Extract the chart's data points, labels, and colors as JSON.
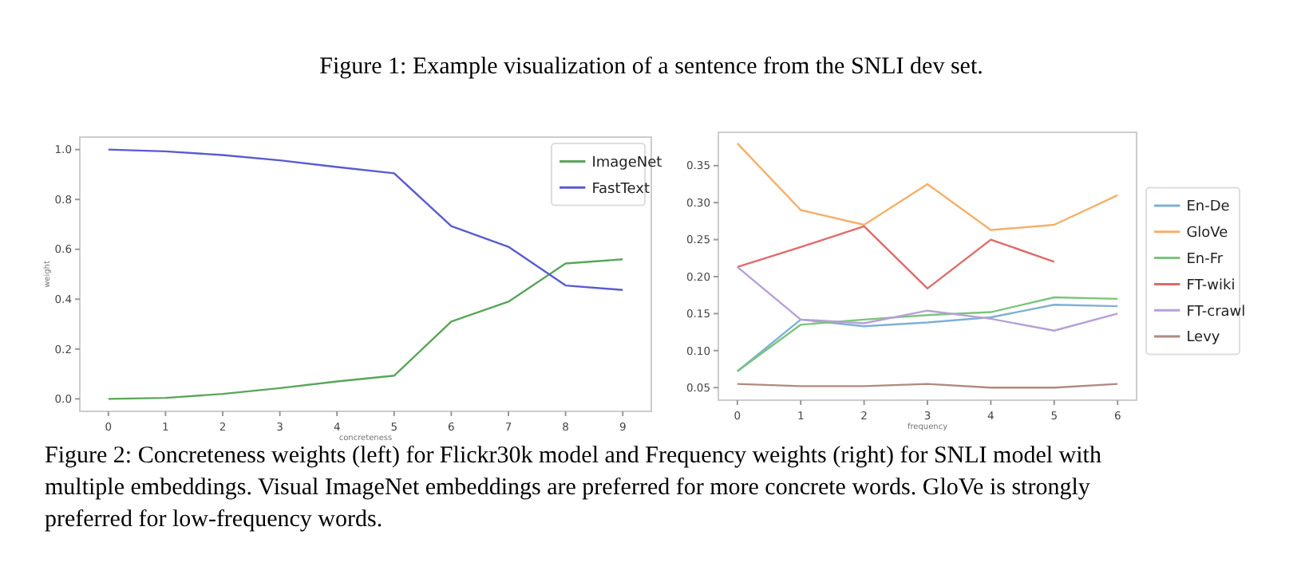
{
  "chart_data": [
    {
      "type": "line",
      "xlabel": "concreteness",
      "ylabel": "weight",
      "x": [
        0,
        1,
        2,
        3,
        4,
        5,
        6,
        7,
        8,
        9
      ],
      "xlim": [
        -0.5,
        9.5
      ],
      "xticks": [
        0,
        1,
        2,
        3,
        4,
        5,
        6,
        7,
        8,
        9
      ],
      "ylim": [
        -0.05,
        1.05
      ],
      "yticks": [
        {
          "value": 0,
          "label": "0.0"
        },
        {
          "value": 0.2,
          "label": "0.2"
        },
        {
          "value": 0.4,
          "label": "0.4"
        },
        {
          "value": 0.6,
          "label": "0.6"
        },
        {
          "value": 0.8,
          "label": "0.8"
        },
        {
          "value": 1,
          "label": "1.0"
        }
      ],
      "grid": false,
      "legend": "top right",
      "series": [
        {
          "name": "ImageNet",
          "color": "#5aa55a",
          "values": [
            0.0,
            0.004,
            0.02,
            0.043,
            0.07,
            0.093,
            0.31,
            0.39,
            0.543,
            0.56
          ]
        },
        {
          "name": "FastText",
          "color": "#5a5ad2",
          "values": [
            1.0,
            0.993,
            0.978,
            0.957,
            0.93,
            0.905,
            0.693,
            0.61,
            0.455,
            0.437
          ]
        }
      ],
      "annotations": [
        "Figure 1: Example visualization of a sentence from the SNLI dev set."
      ]
    },
    {
      "type": "line",
      "xlabel": "frequency",
      "x": [
        0,
        1,
        2,
        3,
        4,
        5,
        6
      ],
      "xlim": [
        -0.3,
        6.3
      ],
      "xticks": [
        0,
        1,
        2,
        3,
        4,
        5,
        6
      ],
      "ylim": [
        0.033,
        0.395
      ],
      "yticks": [
        {
          "value": 0.05,
          "label": "0.05"
        },
        {
          "value": 0.1,
          "label": "0.10"
        },
        {
          "value": 0.15,
          "label": "0.15"
        },
        {
          "value": 0.2,
          "label": "0.20"
        },
        {
          "value": 0.25,
          "label": "0.25"
        },
        {
          "value": 0.3,
          "label": "0.30"
        },
        {
          "value": 0.35,
          "label": "0.35"
        }
      ],
      "grid": false,
      "legend": "right",
      "series": [
        {
          "name": "En-De",
          "color": "#7fb0d6",
          "values": [
            0.072,
            0.142,
            0.133,
            0.138,
            0.145,
            0.162,
            0.16
          ]
        },
        {
          "name": "GloVe",
          "color": "#f5b06a",
          "values": [
            0.38,
            0.29,
            0.27,
            0.325,
            0.263,
            0.27,
            0.31
          ]
        },
        {
          "name": "En-Fr",
          "color": "#7cc47c",
          "values": [
            0.072,
            0.135,
            0.142,
            0.148,
            0.152,
            0.172,
            0.17
          ]
        },
        {
          "name": "FT-wiki",
          "color": "#e06a6a",
          "values": [
            0.213,
            0.24,
            0.268,
            0.184,
            0.25,
            0.22,
            null
          ]
        },
        {
          "name": "FT-crawl",
          "color": "#b6a0d6",
          "values": [
            0.213,
            0.142,
            0.137,
            0.154,
            0.143,
            0.127,
            0.15
          ]
        },
        {
          "name": "Levy",
          "color": "#b08a80",
          "values": [
            0.055,
            0.052,
            0.052,
            0.055,
            0.05,
            0.05,
            0.055
          ]
        }
      ],
      "annotations": [
        "Figure 2: Concreteness weights (left) for Flickr30k model and Frequency weights (right) for SNLI model with multiple embeddings. Visual ImageNet embeddings are preferred for more concrete words. GloVe is strongly preferred for low-frequency words."
      ]
    }
  ]
}
